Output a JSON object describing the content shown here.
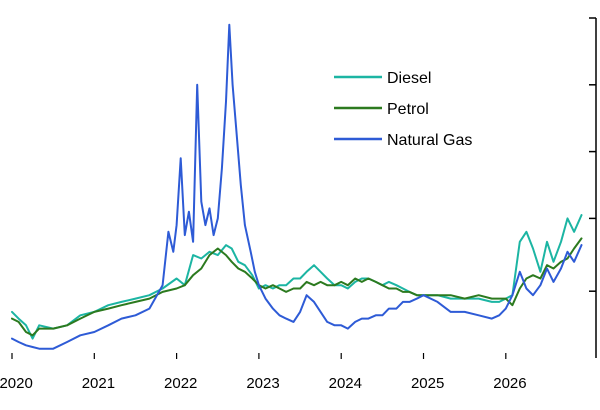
{
  "chart_data": {
    "type": "line",
    "title": "",
    "xlabel": "",
    "ylabel": "",
    "x_ticks": [
      "2020",
      "2021",
      "2022",
      "2023",
      "2024",
      "2025",
      "2026"
    ],
    "x_range": [
      2020.0,
      2026.95
    ],
    "y_range": [
      0,
      100
    ],
    "y_axis_side": "right",
    "y_ticks_labeled": false,
    "grid": false,
    "legend": {
      "position": "top-right",
      "entries": [
        "Diesel",
        "Petrol",
        "Natural Gas"
      ]
    },
    "series": [
      {
        "name": "Diesel",
        "color": "#1cb5a3",
        "points": [
          [
            2020.0,
            12
          ],
          [
            2020.08,
            10
          ],
          [
            2020.17,
            8
          ],
          [
            2020.25,
            4
          ],
          [
            2020.33,
            8
          ],
          [
            2020.5,
            7
          ],
          [
            2020.67,
            8
          ],
          [
            2020.83,
            11
          ],
          [
            2021.0,
            12
          ],
          [
            2021.17,
            14
          ],
          [
            2021.33,
            15
          ],
          [
            2021.5,
            16
          ],
          [
            2021.67,
            17
          ],
          [
            2021.83,
            19
          ],
          [
            2022.0,
            22
          ],
          [
            2022.1,
            20
          ],
          [
            2022.2,
            29
          ],
          [
            2022.3,
            28
          ],
          [
            2022.4,
            30
          ],
          [
            2022.5,
            29
          ],
          [
            2022.6,
            32
          ],
          [
            2022.67,
            31
          ],
          [
            2022.75,
            27
          ],
          [
            2022.83,
            26
          ],
          [
            2022.92,
            23
          ],
          [
            2023.0,
            19
          ],
          [
            2023.08,
            20
          ],
          [
            2023.17,
            19
          ],
          [
            2023.25,
            20
          ],
          [
            2023.33,
            20
          ],
          [
            2023.42,
            22
          ],
          [
            2023.5,
            22
          ],
          [
            2023.58,
            24
          ],
          [
            2023.67,
            26
          ],
          [
            2023.75,
            24
          ],
          [
            2023.83,
            22
          ],
          [
            2023.92,
            20
          ],
          [
            2024.0,
            20
          ],
          [
            2024.08,
            19
          ],
          [
            2024.17,
            21
          ],
          [
            2024.25,
            22
          ],
          [
            2024.33,
            22
          ],
          [
            2024.42,
            21
          ],
          [
            2024.5,
            20
          ],
          [
            2024.58,
            21
          ],
          [
            2024.67,
            20
          ],
          [
            2024.75,
            19
          ],
          [
            2024.83,
            18
          ],
          [
            2024.92,
            17
          ],
          [
            2025.0,
            17
          ],
          [
            2025.17,
            17
          ],
          [
            2025.33,
            16
          ],
          [
            2025.5,
            16
          ],
          [
            2025.67,
            16
          ],
          [
            2025.83,
            15
          ],
          [
            2025.92,
            15
          ],
          [
            2026.0,
            16
          ],
          [
            2026.08,
            17
          ],
          [
            2026.17,
            33
          ],
          [
            2026.25,
            36
          ],
          [
            2026.33,
            31
          ],
          [
            2026.42,
            24
          ],
          [
            2026.5,
            33
          ],
          [
            2026.58,
            27
          ],
          [
            2026.67,
            33
          ],
          [
            2026.75,
            40
          ],
          [
            2026.83,
            36
          ],
          [
            2026.92,
            41
          ]
        ]
      },
      {
        "name": "Petrol",
        "color": "#2c7a1f",
        "points": [
          [
            2020.0,
            10
          ],
          [
            2020.08,
            9
          ],
          [
            2020.17,
            6
          ],
          [
            2020.25,
            5
          ],
          [
            2020.33,
            7
          ],
          [
            2020.5,
            7
          ],
          [
            2020.67,
            8
          ],
          [
            2020.83,
            10
          ],
          [
            2021.0,
            12
          ],
          [
            2021.17,
            13
          ],
          [
            2021.33,
            14
          ],
          [
            2021.5,
            15
          ],
          [
            2021.67,
            16
          ],
          [
            2021.83,
            18
          ],
          [
            2022.0,
            19
          ],
          [
            2022.1,
            20
          ],
          [
            2022.2,
            23
          ],
          [
            2022.3,
            25
          ],
          [
            2022.4,
            29
          ],
          [
            2022.5,
            31
          ],
          [
            2022.6,
            29
          ],
          [
            2022.67,
            27
          ],
          [
            2022.75,
            25
          ],
          [
            2022.83,
            24
          ],
          [
            2022.92,
            22
          ],
          [
            2023.0,
            20
          ],
          [
            2023.08,
            19
          ],
          [
            2023.17,
            20
          ],
          [
            2023.25,
            19
          ],
          [
            2023.33,
            18
          ],
          [
            2023.42,
            19
          ],
          [
            2023.5,
            19
          ],
          [
            2023.58,
            21
          ],
          [
            2023.67,
            20
          ],
          [
            2023.75,
            21
          ],
          [
            2023.83,
            20
          ],
          [
            2023.92,
            20
          ],
          [
            2024.0,
            21
          ],
          [
            2024.08,
            20
          ],
          [
            2024.17,
            22
          ],
          [
            2024.25,
            21
          ],
          [
            2024.33,
            22
          ],
          [
            2024.42,
            21
          ],
          [
            2024.5,
            20
          ],
          [
            2024.58,
            19
          ],
          [
            2024.67,
            19
          ],
          [
            2024.75,
            18
          ],
          [
            2024.83,
            18
          ],
          [
            2024.92,
            17
          ],
          [
            2025.0,
            17
          ],
          [
            2025.17,
            17
          ],
          [
            2025.33,
            17
          ],
          [
            2025.5,
            16
          ],
          [
            2025.67,
            17
          ],
          [
            2025.83,
            16
          ],
          [
            2025.92,
            16
          ],
          [
            2026.0,
            16
          ],
          [
            2026.08,
            14
          ],
          [
            2026.17,
            19
          ],
          [
            2026.25,
            22
          ],
          [
            2026.33,
            23
          ],
          [
            2026.42,
            22
          ],
          [
            2026.5,
            26
          ],
          [
            2026.58,
            25
          ],
          [
            2026.67,
            27
          ],
          [
            2026.75,
            28
          ],
          [
            2026.83,
            31
          ],
          [
            2026.92,
            34
          ]
        ]
      },
      {
        "name": "Natural Gas",
        "color": "#2e5bd6",
        "points": [
          [
            2020.0,
            4
          ],
          [
            2020.08,
            3
          ],
          [
            2020.17,
            2
          ],
          [
            2020.25,
            1.5
          ],
          [
            2020.33,
            1
          ],
          [
            2020.5,
            1
          ],
          [
            2020.67,
            3
          ],
          [
            2020.83,
            5
          ],
          [
            2021.0,
            6
          ],
          [
            2021.17,
            8
          ],
          [
            2021.33,
            10
          ],
          [
            2021.5,
            11
          ],
          [
            2021.67,
            13
          ],
          [
            2021.83,
            20
          ],
          [
            2021.9,
            36
          ],
          [
            2021.96,
            30
          ],
          [
            2022.0,
            38
          ],
          [
            2022.05,
            58
          ],
          [
            2022.1,
            35
          ],
          [
            2022.15,
            42
          ],
          [
            2022.2,
            33
          ],
          [
            2022.25,
            80
          ],
          [
            2022.3,
            45
          ],
          [
            2022.35,
            38
          ],
          [
            2022.4,
            43
          ],
          [
            2022.45,
            35
          ],
          [
            2022.5,
            40
          ],
          [
            2022.55,
            55
          ],
          [
            2022.6,
            75
          ],
          [
            2022.64,
            98
          ],
          [
            2022.68,
            80
          ],
          [
            2022.72,
            68
          ],
          [
            2022.78,
            50
          ],
          [
            2022.83,
            38
          ],
          [
            2022.9,
            30
          ],
          [
            2022.95,
            24
          ],
          [
            2023.0,
            20
          ],
          [
            2023.08,
            16
          ],
          [
            2023.17,
            13
          ],
          [
            2023.25,
            11
          ],
          [
            2023.33,
            10
          ],
          [
            2023.42,
            9
          ],
          [
            2023.5,
            12
          ],
          [
            2023.58,
            17
          ],
          [
            2023.67,
            15
          ],
          [
            2023.75,
            12
          ],
          [
            2023.83,
            9
          ],
          [
            2023.92,
            8
          ],
          [
            2024.0,
            8
          ],
          [
            2024.08,
            7
          ],
          [
            2024.17,
            9
          ],
          [
            2024.25,
            10
          ],
          [
            2024.33,
            10
          ],
          [
            2024.42,
            11
          ],
          [
            2024.5,
            11
          ],
          [
            2024.58,
            13
          ],
          [
            2024.67,
            13
          ],
          [
            2024.75,
            15
          ],
          [
            2024.83,
            15
          ],
          [
            2024.92,
            16
          ],
          [
            2025.0,
            17
          ],
          [
            2025.17,
            15
          ],
          [
            2025.33,
            12
          ],
          [
            2025.5,
            12
          ],
          [
            2025.67,
            11
          ],
          [
            2025.83,
            10
          ],
          [
            2025.92,
            11
          ],
          [
            2026.0,
            13
          ],
          [
            2026.08,
            17
          ],
          [
            2026.17,
            24
          ],
          [
            2026.25,
            19
          ],
          [
            2026.33,
            17
          ],
          [
            2026.42,
            20
          ],
          [
            2026.5,
            25
          ],
          [
            2026.58,
            21
          ],
          [
            2026.67,
            25
          ],
          [
            2026.75,
            30
          ],
          [
            2026.83,
            27
          ],
          [
            2026.92,
            32
          ]
        ]
      }
    ]
  }
}
